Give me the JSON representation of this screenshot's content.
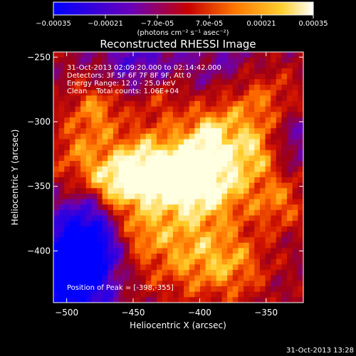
{
  "chart_data": {
    "type": "heatmap",
    "title": "Reconstructed RHESSI Image",
    "xlabel": "Heliocentric X (arcsec)",
    "ylabel": "Heliocentric Y (arcsec)",
    "x_range": [
      -510,
      -322
    ],
    "y_range": [
      -440,
      -246
    ],
    "x_ticks": [
      -500,
      -450,
      -400,
      -350
    ],
    "y_ticks": [
      -250,
      -300,
      -350,
      -400
    ],
    "colorbar": {
      "range": [
        -0.00035,
        0.00035
      ],
      "tick_labels": [
        "-0.00035",
        "-0.00021",
        "-7.0e-05",
        "7.0e-05",
        "0.00021",
        "0.00035"
      ],
      "units_label": "(photons cm⁻² s⁻¹ asec⁻²)",
      "colors": [
        "#0000ff",
        "#6a00b8",
        "#c80000",
        "#ff7800",
        "#ffd030",
        "#ffffff"
      ]
    },
    "info_lines": [
      "31-Oct-2013 02:09:20.000 to 02:14:42.000",
      "Detectors: 3F 5F 6F 7F 8F 9F, Att 0",
      "Energy Range: 12.0 - 25.0 keV",
      "Clean    Total counts: 1.06E+04"
    ],
    "peak_label": "Position of Peak = [-398,-355]",
    "peak_position": [
      -398,
      -355
    ],
    "timestamp": "31-Oct-2013 13:28"
  }
}
